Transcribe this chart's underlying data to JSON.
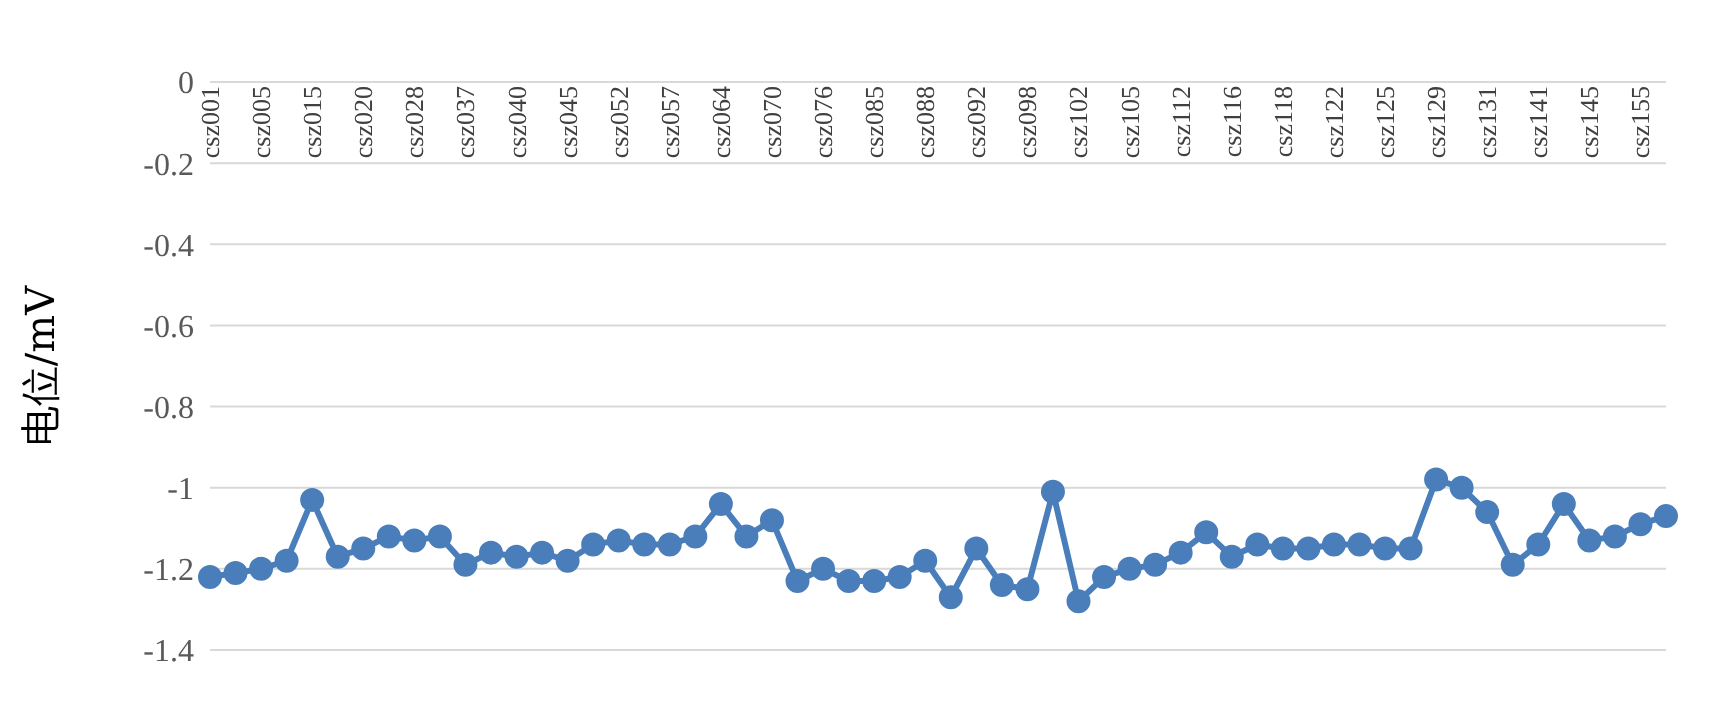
{
  "chart_data": {
    "type": "line",
    "ylabel": "电位/mV",
    "categories": [
      "csz001",
      null,
      "csz005",
      null,
      "csz015",
      null,
      "csz020",
      null,
      "csz028",
      null,
      "csz037",
      null,
      "csz040",
      null,
      "csz045",
      null,
      "csz052",
      null,
      "csz057",
      null,
      "csz064",
      null,
      "csz070",
      null,
      "csz076",
      null,
      "csz085",
      null,
      "csz088",
      null,
      "csz092",
      null,
      "csz098",
      null,
      "csz102",
      null,
      "csz105",
      null,
      "csz112",
      null,
      "csz116",
      null,
      "csz118",
      null,
      "csz122",
      null,
      "csz125",
      null,
      "csz129",
      null,
      "csz131",
      null,
      "csz141",
      null,
      "csz145",
      null,
      "csz155",
      null
    ],
    "values": [
      -1.22,
      -1.21,
      -1.2,
      -1.18,
      -1.03,
      -1.17,
      -1.15,
      -1.12,
      -1.13,
      -1.12,
      -1.19,
      -1.16,
      -1.17,
      -1.16,
      -1.18,
      -1.14,
      -1.13,
      -1.14,
      -1.14,
      -1.12,
      -1.04,
      -1.12,
      -1.08,
      -1.23,
      -1.2,
      -1.23,
      -1.23,
      -1.22,
      -1.18,
      -1.27,
      -1.15,
      -1.24,
      -1.25,
      -1.01,
      -1.28,
      -1.22,
      -1.2,
      -1.19,
      -1.16,
      -1.11,
      -1.17,
      -1.14,
      -1.15,
      -1.15,
      -1.14,
      -1.14,
      -1.15,
      -1.15,
      -0.98,
      -1.0,
      -1.06,
      -1.19,
      -1.14,
      -1.04,
      -1.13,
      -1.12,
      -1.09,
      -1.07
    ],
    "color": "#4a7ebb",
    "marker": "circle",
    "line_style": "solid",
    "grid": "y",
    "ylim": [
      -1.4,
      0
    ],
    "yticks": [
      0,
      -0.2,
      -0.4,
      -0.6,
      -0.8,
      -1,
      -1.2,
      -1.4
    ]
  }
}
